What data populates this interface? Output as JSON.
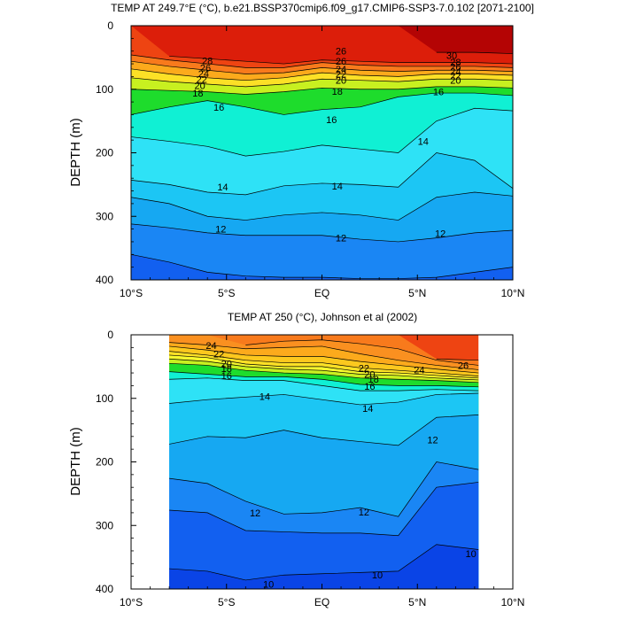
{
  "chart_data": [
    {
      "type": "contour",
      "title": "TEMP AT 249.7°E (°C), b.e21.BSSP370cmip6.f09_g17.CMIP6-SSP3-7.0.102 [2071-2100]",
      "xlabel": "",
      "ylabel": "DEPTH (m)",
      "xlim": [
        -10,
        10
      ],
      "ylim": [
        400,
        0
      ],
      "x_ticks": [
        -10,
        -5,
        0,
        5,
        10
      ],
      "x_tick_labels": [
        "10°S",
        "5°S",
        "EQ",
        "5°N",
        "10°N"
      ],
      "y_ticks": [
        0,
        100,
        200,
        300,
        400
      ],
      "y_tick_labels": [
        "0",
        "100",
        "200",
        "300",
        "400"
      ],
      "data_xrange": [
        -10,
        10
      ],
      "grid": false,
      "x": [
        -10,
        -8,
        -6,
        -4,
        -2,
        0,
        2,
        4,
        6,
        8,
        10
      ],
      "depth_of_isotherm": [
        {
          "level": 30,
          "depth": [
            null,
            null,
            null,
            null,
            null,
            null,
            null,
            null,
            42,
            42,
            44
          ]
        },
        {
          "level": 28,
          "depth": [
            null,
            48,
            52,
            56,
            60,
            54,
            56,
            58,
            58,
            58,
            60
          ]
        },
        {
          "level": 26,
          "depth": [
            46,
            54,
            60,
            66,
            66,
            58,
            62,
            64,
            64,
            64,
            66
          ]
        },
        {
          "level": 24,
          "depth": [
            56,
            64,
            70,
            76,
            74,
            66,
            70,
            72,
            70,
            70,
            72
          ]
        },
        {
          "level": 22,
          "depth": [
            68,
            76,
            82,
            86,
            82,
            74,
            78,
            80,
            76,
            76,
            78
          ]
        },
        {
          "level": 20,
          "depth": [
            82,
            88,
            92,
            96,
            92,
            84,
            86,
            88,
            84,
            84,
            86
          ]
        },
        {
          "level": 18,
          "depth": [
            100,
            102,
            104,
            108,
            104,
            98,
            100,
            100,
            96,
            96,
            98
          ]
        },
        {
          "level": 16,
          "depth": [
            140,
            128,
            118,
            128,
            140,
            132,
            128,
            112,
            106,
            106,
            110
          ]
        },
        {
          "level": 15,
          "depth": [
            175,
            182,
            190,
            205,
            198,
            188,
            194,
            200,
            150,
            130,
            134
          ]
        },
        {
          "level": 14,
          "depth": [
            243,
            250,
            262,
            266,
            252,
            248,
            250,
            254,
            200,
            212,
            256
          ]
        },
        {
          "level": 13,
          "depth": [
            270,
            280,
            300,
            306,
            298,
            294,
            298,
            306,
            270,
            262,
            268
          ]
        },
        {
          "level": 12,
          "depth": [
            312,
            318,
            326,
            330,
            330,
            330,
            336,
            340,
            334,
            326,
            322
          ]
        },
        {
          "level": 11,
          "depth": [
            360,
            372,
            388,
            394,
            396,
            396,
            398,
            398,
            396,
            388,
            380
          ]
        }
      ],
      "contour_labels": [
        {
          "text": "28",
          "x": -6.0,
          "y": 55
        },
        {
          "text": "26",
          "x": -6.1,
          "y": 66
        },
        {
          "text": "24",
          "x": -6.2,
          "y": 75
        },
        {
          "text": "22",
          "x": -6.3,
          "y": 84
        },
        {
          "text": "20",
          "x": -6.4,
          "y": 94
        },
        {
          "text": "18",
          "x": -6.5,
          "y": 106
        },
        {
          "text": "16",
          "x": -5.4,
          "y": 128
        },
        {
          "text": "14",
          "x": -5.2,
          "y": 254
        },
        {
          "text": "12",
          "x": -5.3,
          "y": 320
        },
        {
          "text": "26",
          "x": 1.0,
          "y": 40
        },
        {
          "text": "26",
          "x": 1.0,
          "y": 56
        },
        {
          "text": "24",
          "x": 1.0,
          "y": 68
        },
        {
          "text": "22",
          "x": 1.0,
          "y": 76
        },
        {
          "text": "20",
          "x": 1.0,
          "y": 86
        },
        {
          "text": "18",
          "x": 0.8,
          "y": 103
        },
        {
          "text": "16",
          "x": 0.5,
          "y": 148
        },
        {
          "text": "14",
          "x": 0.8,
          "y": 252
        },
        {
          "text": "12",
          "x": 1.0,
          "y": 334
        },
        {
          "text": "30",
          "x": 6.8,
          "y": 47
        },
        {
          "text": "28",
          "x": 7.0,
          "y": 57
        },
        {
          "text": "26",
          "x": 7.0,
          "y": 65
        },
        {
          "text": "24",
          "x": 7.0,
          "y": 72
        },
        {
          "text": "22",
          "x": 7.0,
          "y": 79
        },
        {
          "text": "20",
          "x": 7.0,
          "y": 86
        },
        {
          "text": "16",
          "x": 6.1,
          "y": 104
        },
        {
          "text": "14",
          "x": 5.3,
          "y": 182
        },
        {
          "text": "12",
          "x": 6.2,
          "y": 327
        }
      ]
    },
    {
      "type": "contour",
      "title": "TEMP AT 250 (°C), Johnson et al (2002)",
      "xlabel": "",
      "ylabel": "DEPTH (m)",
      "xlim": [
        -10,
        10
      ],
      "ylim": [
        400,
        0
      ],
      "x_ticks": [
        -10,
        -5,
        0,
        5,
        10
      ],
      "x_tick_labels": [
        "10°S",
        "5°S",
        "EQ",
        "5°N",
        "10°N"
      ],
      "y_ticks": [
        0,
        100,
        200,
        300,
        400
      ],
      "y_tick_labels": [
        "0",
        "100",
        "200",
        "300",
        "400"
      ],
      "data_xrange": [
        -8,
        8.2
      ],
      "grid": false,
      "x": [
        -8,
        -6,
        -4,
        -2,
        0,
        2,
        4,
        6,
        8.2
      ],
      "depth_of_isotherm": [
        {
          "level": 26,
          "depth": [
            null,
            null,
            null,
            null,
            null,
            null,
            null,
            38,
            40
          ]
        },
        {
          "level": 25,
          "depth": [
            null,
            null,
            16,
            10,
            8,
            14,
            22,
            40,
            48
          ]
        },
        {
          "level": 24,
          "depth": [
            12,
            16,
            22,
            20,
            18,
            30,
            40,
            48,
            55
          ]
        },
        {
          "level": 23,
          "depth": [
            18,
            24,
            32,
            34,
            34,
            42,
            48,
            54,
            60
          ]
        },
        {
          "level": 22,
          "depth": [
            26,
            32,
            40,
            44,
            44,
            52,
            56,
            60,
            65
          ]
        },
        {
          "level": 21,
          "depth": [
            32,
            36,
            46,
            50,
            50,
            58,
            60,
            64,
            68
          ]
        },
        {
          "level": 20,
          "depth": [
            38,
            42,
            50,
            54,
            56,
            62,
            64,
            68,
            71
          ]
        },
        {
          "level": 18,
          "depth": [
            45,
            48,
            56,
            60,
            62,
            68,
            70,
            72,
            75
          ]
        },
        {
          "level": 16,
          "depth": [
            58,
            62,
            66,
            66,
            70,
            78,
            80,
            80,
            82
          ]
        },
        {
          "level": 15,
          "depth": [
            70,
            68,
            72,
            72,
            80,
            88,
            88,
            86,
            88
          ]
        },
        {
          "level": 14,
          "depth": [
            108,
            102,
            98,
            94,
            102,
            110,
            106,
            94,
            92
          ]
        },
        {
          "level": 13,
          "depth": [
            172,
            160,
            162,
            150,
            162,
            168,
            174,
            130,
            126
          ]
        },
        {
          "level": 12,
          "depth": [
            226,
            234,
            262,
            282,
            280,
            272,
            286,
            200,
            212
          ]
        },
        {
          "level": 11,
          "depth": [
            276,
            280,
            308,
            310,
            312,
            312,
            316,
            240,
            232
          ]
        },
        {
          "level": 10,
          "depth": [
            368,
            372,
            386,
            378,
            376,
            374,
            372,
            330,
            338
          ]
        }
      ],
      "contour_labels": [
        {
          "text": "24",
          "x": -5.8,
          "y": 17
        },
        {
          "text": "22",
          "x": -5.4,
          "y": 30
        },
        {
          "text": "20",
          "x": -5.0,
          "y": 45
        },
        {
          "text": "18",
          "x": -5.0,
          "y": 53
        },
        {
          "text": "16",
          "x": -5.0,
          "y": 64
        },
        {
          "text": "14",
          "x": -3.0,
          "y": 97
        },
        {
          "text": "12",
          "x": -3.5,
          "y": 280
        },
        {
          "text": "22",
          "x": 2.2,
          "y": 52
        },
        {
          "text": "20",
          "x": 2.5,
          "y": 62
        },
        {
          "text": "18",
          "x": 2.7,
          "y": 70
        },
        {
          "text": "16",
          "x": 2.5,
          "y": 81
        },
        {
          "text": "14",
          "x": 2.4,
          "y": 116
        },
        {
          "text": "12",
          "x": 2.2,
          "y": 279
        },
        {
          "text": "10",
          "x": -2.8,
          "y": 392
        },
        {
          "text": "10",
          "x": 2.9,
          "y": 378
        },
        {
          "text": "24",
          "x": 5.1,
          "y": 55
        },
        {
          "text": "26",
          "x": 7.4,
          "y": 48
        },
        {
          "text": "12",
          "x": 5.8,
          "y": 165
        },
        {
          "text": "10",
          "x": 7.8,
          "y": 344
        }
      ]
    }
  ]
}
